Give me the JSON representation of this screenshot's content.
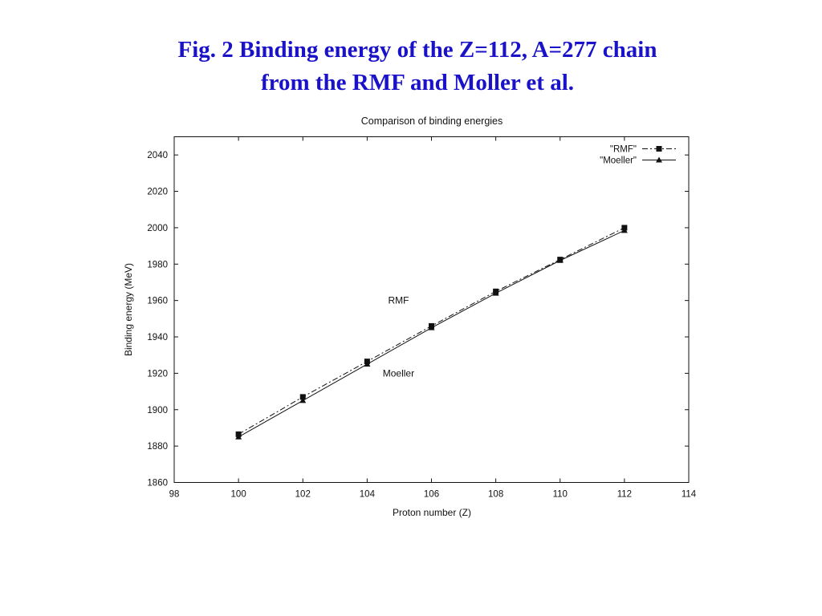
{
  "slide": {
    "title_line1": "Fig. 2  Binding energy of the  Z=112, A=277 chain",
    "title_line2": "from the RMF and Moller et al."
  },
  "colors": {
    "title": "#1a12c8",
    "axis": "#111111"
  },
  "chart_data": {
    "type": "line",
    "title": "Comparison of binding energies",
    "xlabel": "Proton number (Z)",
    "ylabel": "Binding energy (MeV)",
    "xlim": [
      98,
      114
    ],
    "ylim": [
      1860,
      2050
    ],
    "xticks": [
      98,
      100,
      102,
      104,
      106,
      108,
      110,
      112,
      114
    ],
    "yticks": [
      1860,
      1880,
      1900,
      1920,
      1940,
      1960,
      1980,
      2000,
      2020,
      2040
    ],
    "grid": false,
    "legend_position": "top-right",
    "series": [
      {
        "name": "\"RMF\"",
        "marker": "square",
        "line_style": "dash-dot",
        "x": [
          100,
          102,
          104,
          106,
          108,
          110,
          112
        ],
        "y": [
          1886.5,
          1907,
          1926.5,
          1946,
          1965,
          1982.5,
          2000
        ]
      },
      {
        "name": "\"Moeller\"",
        "marker": "triangle",
        "line_style": "solid",
        "x": [
          100,
          102,
          104,
          106,
          108,
          110,
          112
        ],
        "y": [
          1885,
          1905,
          1925,
          1945,
          1964,
          1982,
          1998.5
        ]
      }
    ],
    "annotations": [
      {
        "text": "RMF",
        "x": 105,
        "y": 1960
      },
      {
        "text": "Moeller",
        "x": 105,
        "y": 1920
      }
    ]
  }
}
